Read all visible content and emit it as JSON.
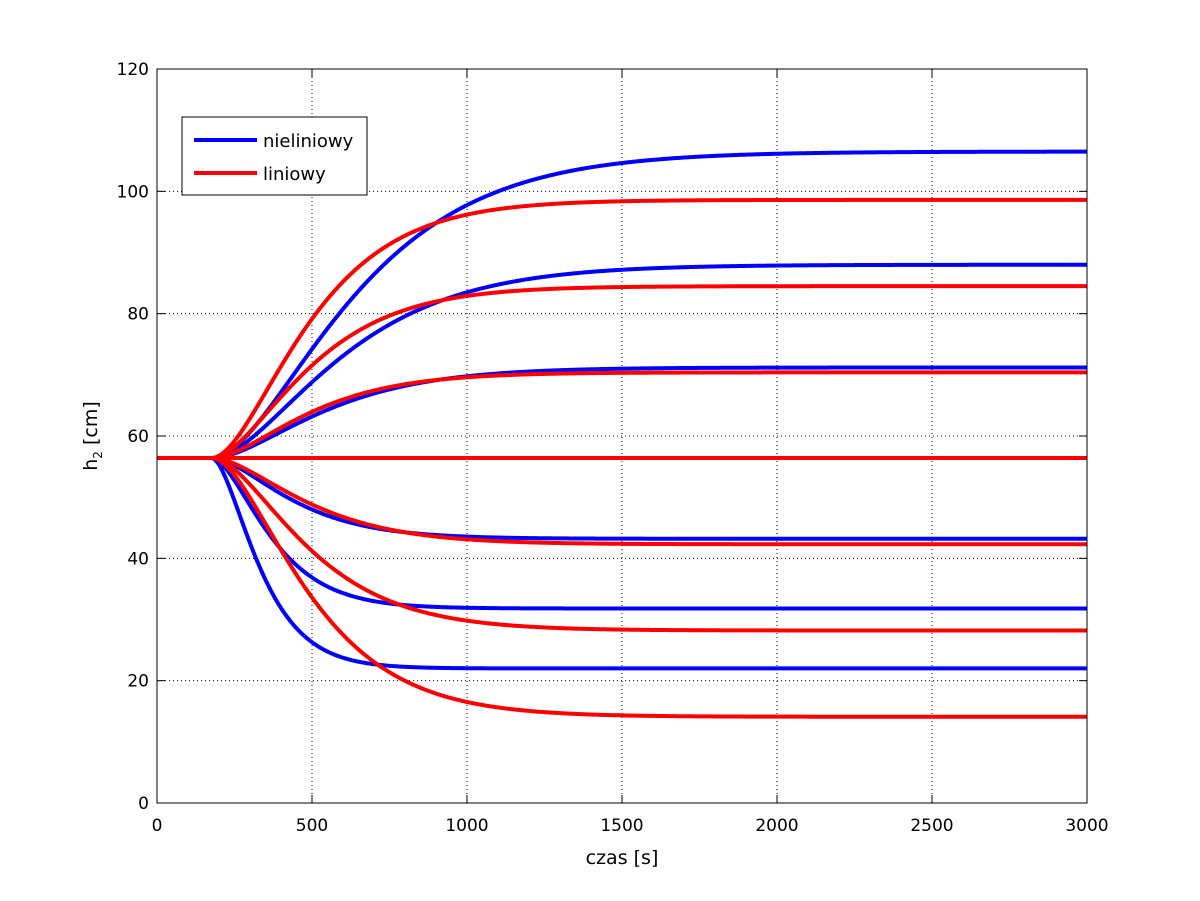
{
  "chart_data": {
    "type": "line",
    "xlabel": "czas [s]",
    "ylabel": "h",
    "ylabel_sub": "2",
    "ylabel_unit": " [cm]",
    "xlim": [
      0,
      3000
    ],
    "ylim": [
      0,
      120
    ],
    "xticks": [
      0,
      500,
      1000,
      1500,
      2000,
      2500,
      3000
    ],
    "yticks": [
      0,
      20,
      40,
      60,
      80,
      100,
      120
    ],
    "grid": true,
    "legend_position": "top-left",
    "legend": [
      {
        "label": "nieliniowy",
        "color": "#0000ff"
      },
      {
        "label": "liniowy",
        "color": "#ff0000"
      }
    ],
    "step_time": 175,
    "initial_value": 56.4,
    "series": [
      {
        "name": "nieliniowy",
        "color": "#0000ff",
        "final": 106.5,
        "tau": 260
      },
      {
        "name": "nieliniowy",
        "color": "#0000ff",
        "final": 88.0,
        "tau": 240
      },
      {
        "name": "nieliniowy",
        "color": "#0000ff",
        "final": 71.2,
        "tau": 210
      },
      {
        "name": "nieliniowy",
        "color": "#0000ff",
        "final": 56.4,
        "tau": 200
      },
      {
        "name": "nieliniowy",
        "color": "#0000ff",
        "final": 43.2,
        "tau": 150
      },
      {
        "name": "nieliniowy",
        "color": "#0000ff",
        "final": 31.8,
        "tau": 110
      },
      {
        "name": "nieliniowy",
        "color": "#0000ff",
        "final": 22.0,
        "tau": 90
      },
      {
        "name": "liniowy",
        "color": "#ff0000",
        "final": 98.6,
        "tau": 180
      },
      {
        "name": "liniowy",
        "color": "#ff0000",
        "final": 84.5,
        "tau": 180
      },
      {
        "name": "liniowy",
        "color": "#ff0000",
        "final": 70.4,
        "tau": 180
      },
      {
        "name": "liniowy",
        "color": "#ff0000",
        "final": 56.4,
        "tau": 180
      },
      {
        "name": "liniowy",
        "color": "#ff0000",
        "final": 42.3,
        "tau": 180
      },
      {
        "name": "liniowy",
        "color": "#ff0000",
        "final": 28.2,
        "tau": 180
      },
      {
        "name": "liniowy",
        "color": "#ff0000",
        "final": 14.1,
        "tau": 180
      }
    ]
  }
}
